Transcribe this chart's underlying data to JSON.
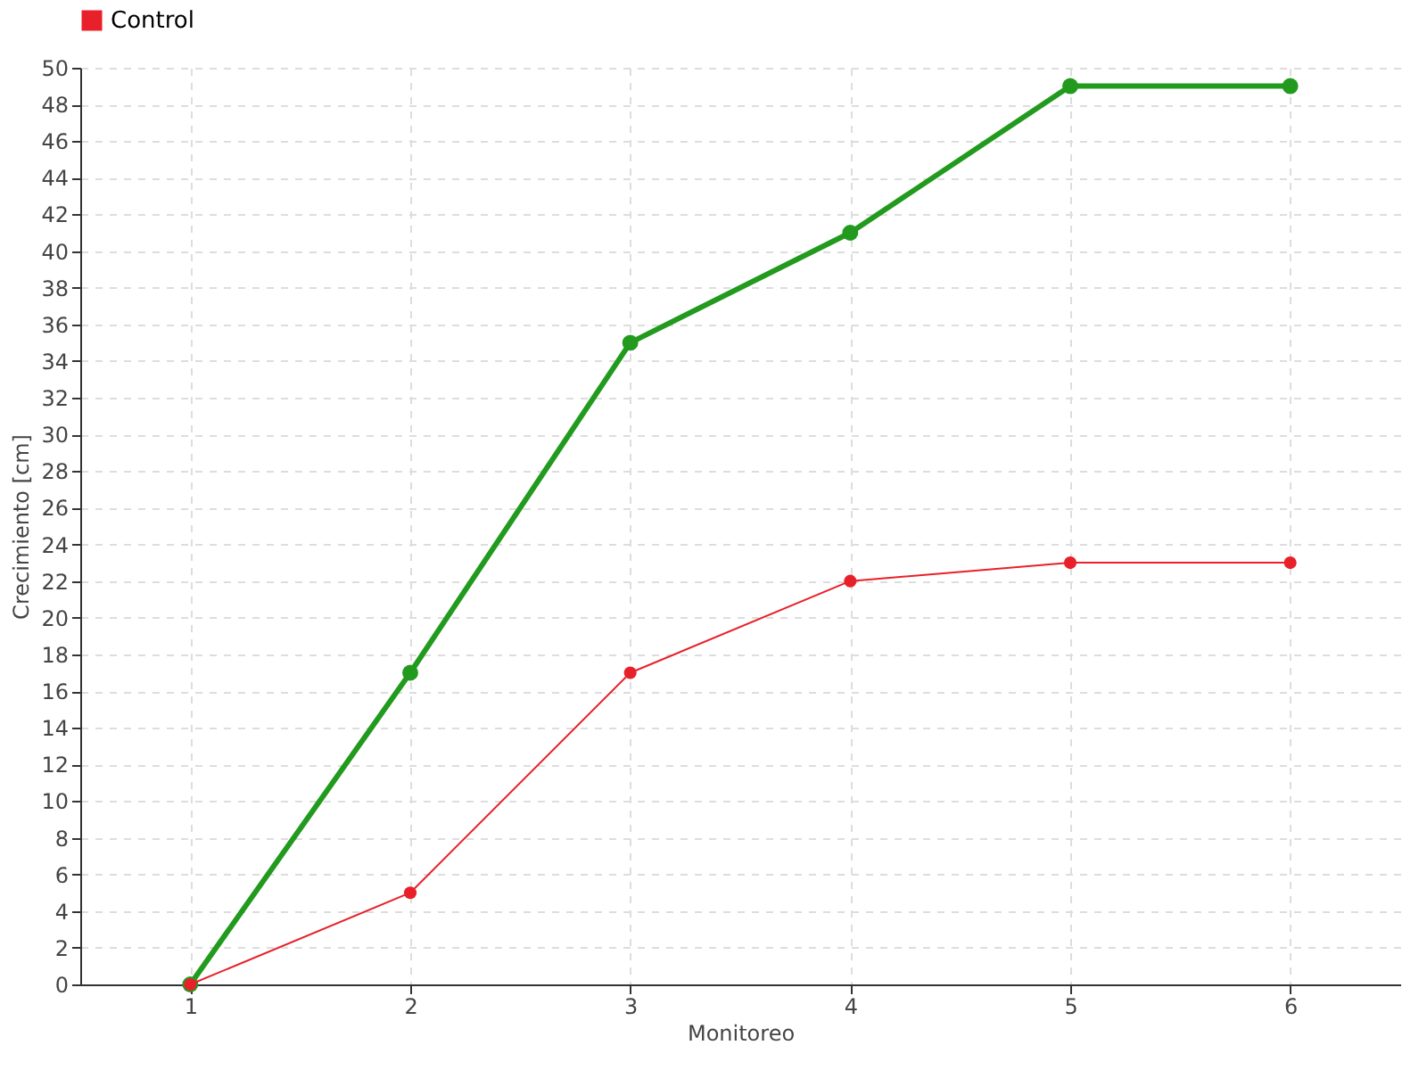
{
  "chart_data": {
    "type": "line",
    "xlabel": "Monitoreo",
    "ylabel": "Crecimiento [cm]",
    "x": [
      1,
      2,
      3,
      4,
      5,
      6
    ],
    "series": [
      {
        "color": "#229a1e",
        "values": [
          0,
          17,
          35,
          41,
          49,
          49
        ]
      },
      {
        "name": "Control",
        "color": "#e8202a",
        "values": [
          0,
          5,
          17,
          22,
          23,
          23
        ]
      }
    ],
    "xlim": [
      0.5,
      6.5
    ],
    "xticks": [
      1,
      2,
      3,
      4,
      5,
      6
    ],
    "ylim": [
      0,
      50
    ],
    "yticks": [
      0,
      2,
      4,
      6,
      8,
      10,
      12,
      14,
      16,
      18,
      20,
      22,
      24,
      26,
      28,
      30,
      32,
      34,
      36,
      38,
      40,
      42,
      44,
      46,
      48,
      50
    ],
    "grid": true,
    "legend": "top left",
    "marker": "circle",
    "line_style": "solid"
  }
}
